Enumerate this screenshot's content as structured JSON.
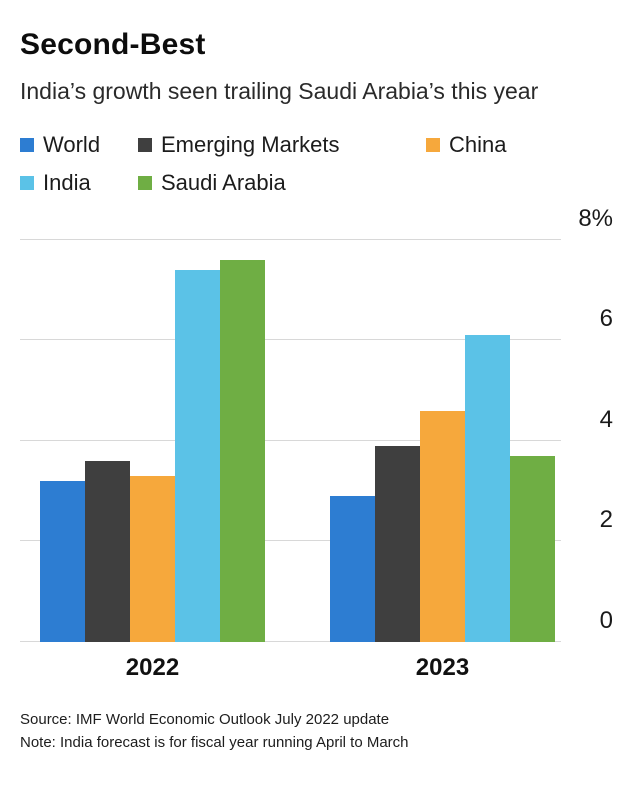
{
  "title": "Second-Best",
  "subtitle": "India’s growth seen trailing Saudi Arabia’s this year",
  "legend": [
    {
      "label": "World",
      "color": "#2d7dd2"
    },
    {
      "label": "Emerging Markets",
      "color": "#3f3f3f"
    },
    {
      "label": "China",
      "color": "#f6a83c"
    },
    {
      "label": "India",
      "color": "#5bc2e7"
    },
    {
      "label": "Saudi Arabia",
      "color": "#6fae44"
    }
  ],
  "chart_data": {
    "type": "bar",
    "categories": [
      "2022",
      "2023"
    ],
    "series": [
      {
        "name": "World",
        "color": "#2d7dd2",
        "values": [
          3.2,
          2.9
        ]
      },
      {
        "name": "Emerging Markets",
        "color": "#3f3f3f",
        "values": [
          3.6,
          3.9
        ]
      },
      {
        "name": "China",
        "color": "#f6a83c",
        "values": [
          3.3,
          4.6
        ]
      },
      {
        "name": "India",
        "color": "#5bc2e7",
        "values": [
          7.4,
          6.1
        ]
      },
      {
        "name": "Saudi Arabia",
        "color": "#6fae44",
        "values": [
          7.6,
          3.7
        ]
      }
    ],
    "ylim": [
      0,
      8
    ],
    "yticks": [
      {
        "value": 8,
        "label": "8%"
      },
      {
        "value": 6,
        "label": "6"
      },
      {
        "value": 4,
        "label": "4"
      },
      {
        "value": 2,
        "label": "2"
      },
      {
        "value": 0,
        "label": "0"
      }
    ],
    "grid": true,
    "legend_position": "top"
  },
  "footer": {
    "source": "Source: IMF World Economic Outlook July 2022 update",
    "note": "Note: India forecast is for fiscal year running April to March"
  }
}
